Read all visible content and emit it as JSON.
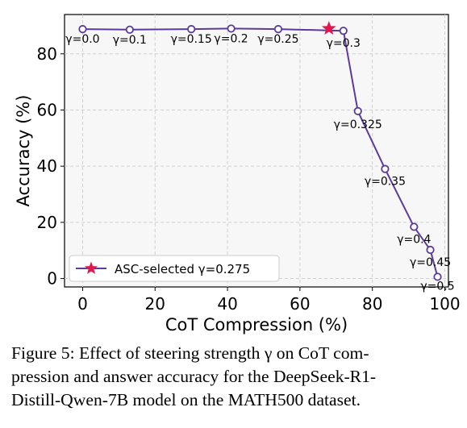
{
  "chart_data": {
    "type": "line",
    "xlabel": "CoT Compression (%)",
    "ylabel": "Accuracy (%)",
    "xlim": [
      -5,
      101
    ],
    "ylim": [
      -3,
      94
    ],
    "xticks": [
      0,
      20,
      40,
      60,
      80,
      100
    ],
    "yticks": [
      0,
      20,
      40,
      60,
      80
    ],
    "grid": true,
    "legend_position": "lower-left",
    "series_color": "#5b3a9e",
    "highlight_color": "#e0164c",
    "points": [
      {
        "label": "γ=0.0",
        "x": 0,
        "y": 88.8
      },
      {
        "label": "γ=0.1",
        "x": 13,
        "y": 88.6
      },
      {
        "label": "γ=0.15",
        "x": 30,
        "y": 88.8
      },
      {
        "label": "γ=0.2",
        "x": 41,
        "y": 89.0
      },
      {
        "label": "γ=0.25",
        "x": 54,
        "y": 88.8
      },
      {
        "label": "γ=0.3",
        "x": 72,
        "y": 88.2
      },
      {
        "label": "γ=0.325",
        "x": 76,
        "y": 59.6
      },
      {
        "label": "γ=0.35",
        "x": 83.5,
        "y": 39.0
      },
      {
        "label": "γ=0.4",
        "x": 91.5,
        "y": 18.4
      },
      {
        "label": "γ=0.45",
        "x": 96,
        "y": 10.2
      },
      {
        "label": "γ=0.5",
        "x": 98,
        "y": 0.6
      }
    ],
    "highlight": {
      "label": "ASC-selected γ=0.275",
      "x": 68,
      "y": 89.0
    }
  },
  "caption": {
    "lines": [
      "Figure 5: Effect of steering strength γ on CoT com-",
      "pression and answer accuracy for the DeepSeek-R1-",
      "Distill-Qwen-7B model on the MATH500 dataset."
    ]
  }
}
